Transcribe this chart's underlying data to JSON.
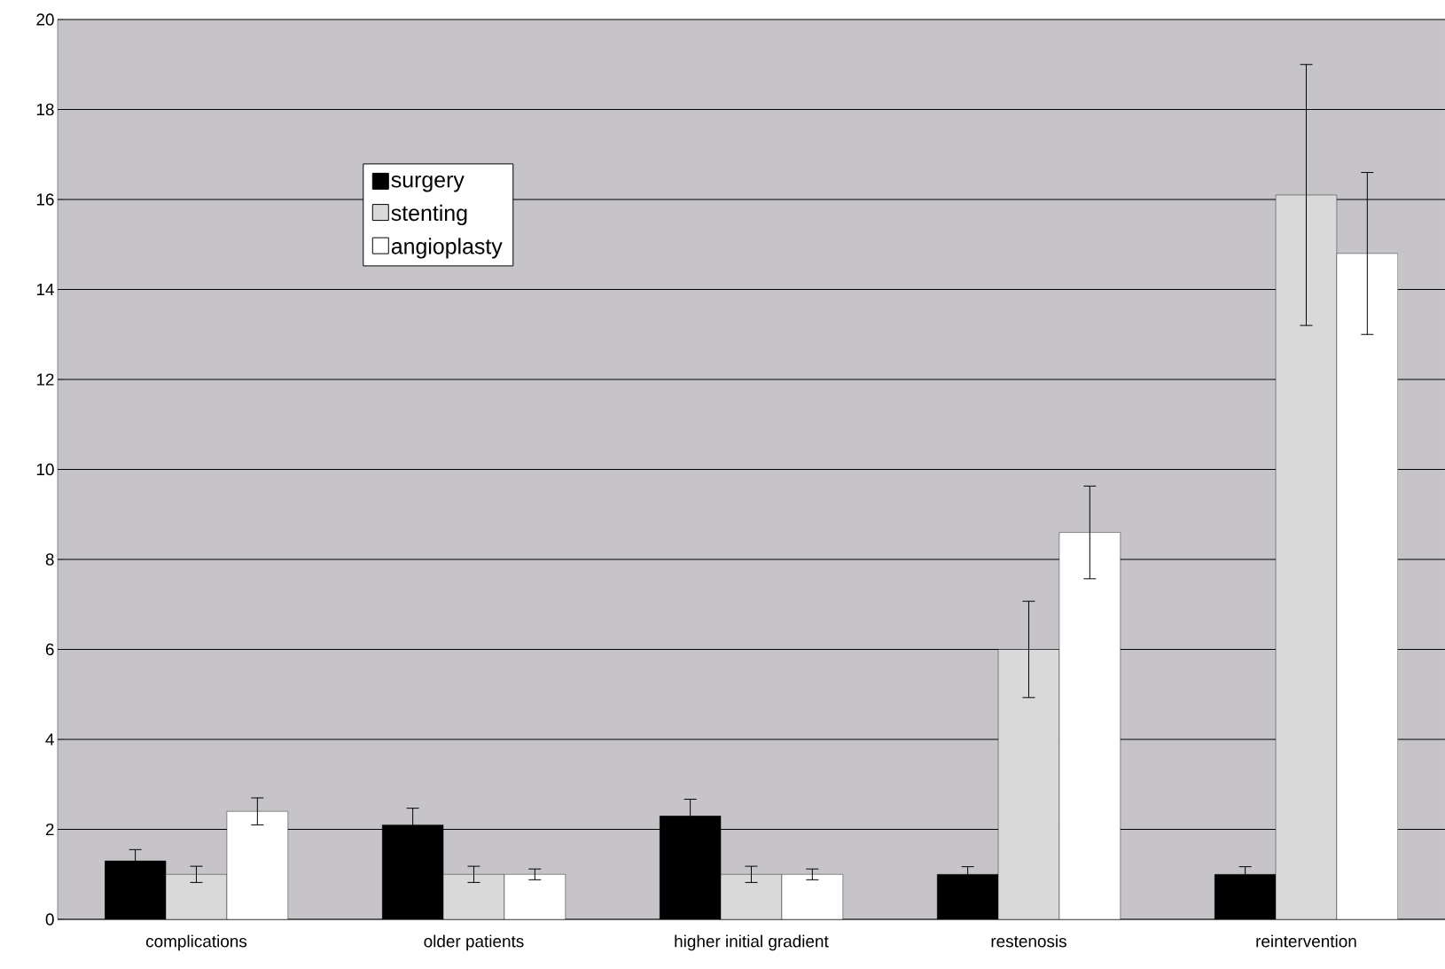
{
  "chart_data": {
    "type": "bar",
    "categories": [
      "complications",
      "older patients",
      "higher initial gradient",
      "restenosis",
      "reintervention"
    ],
    "series": [
      {
        "name": "surgery",
        "color": "#000000",
        "values": [
          1.3,
          2.1,
          2.3,
          1.0,
          1.0
        ],
        "errors": [
          0.25,
          0.37,
          0.37,
          0.17,
          0.17
        ]
      },
      {
        "name": "stenting",
        "color": "#d9d9d9",
        "values": [
          1.0,
          1.0,
          1.0,
          6.0,
          16.1
        ],
        "errors": [
          0.18,
          0.18,
          0.18,
          1.07,
          2.9
        ]
      },
      {
        "name": "angioplasty",
        "color": "#ffffff",
        "values": [
          2.4,
          1.0,
          1.0,
          8.6,
          14.8
        ],
        "errors": [
          0.3,
          0.12,
          0.12,
          1.03,
          1.8
        ]
      }
    ],
    "ylim": [
      0,
      20
    ],
    "yticks": [
      0,
      2,
      4,
      6,
      8,
      10,
      12,
      14,
      16,
      18,
      20
    ],
    "grid": "y",
    "legend": "top left"
  }
}
